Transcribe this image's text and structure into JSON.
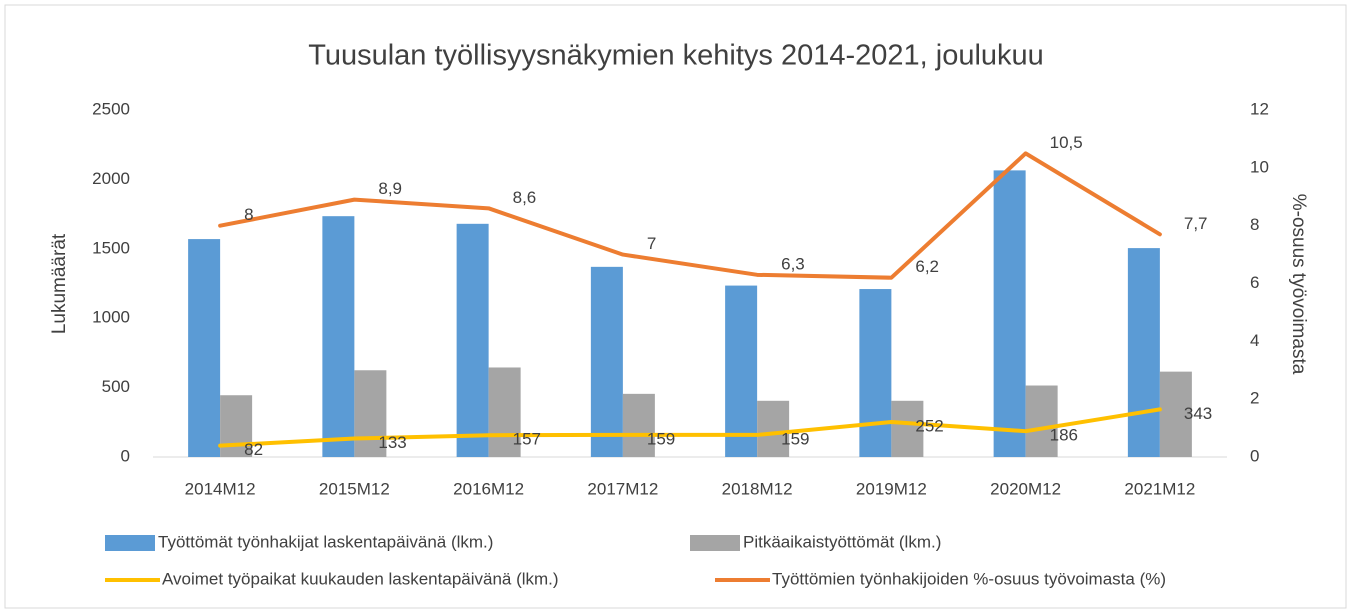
{
  "chart_data": {
    "type": "bar",
    "title": "Tuusulan työllisyysnäkymien kehitys 2014-2021, joulukuu",
    "y_label": "Lukumäärät",
    "y2_label": "%-osuus työvoimasta",
    "categories": [
      "2014M12",
      "2015M12",
      "2016M12",
      "2017M12",
      "2018M12",
      "2019M12",
      "2020M12",
      "2021M12"
    ],
    "series": [
      {
        "name": "Työttömät työnhakijat laskentapäivänä (lkm.)",
        "type": "bar",
        "color": "#5b9bd5",
        "values": [
          1570,
          1735,
          1680,
          1370,
          1235,
          1210,
          2065,
          1505
        ]
      },
      {
        "name": "Pitkäaikaistyöttömät (lkm.)",
        "type": "bar",
        "color": "#a5a5a5",
        "values": [
          445,
          625,
          645,
          455,
          405,
          405,
          515,
          615
        ]
      },
      {
        "name": "Avoimet työpaikat kuukauden laskentapäivänä (lkm.)",
        "type": "line",
        "color": "#ffc000",
        "values": [
          82,
          133,
          157,
          159,
          159,
          252,
          186,
          343
        ]
      },
      {
        "name": "Työttömien työnhakijoiden %-osuus työvoimasta (%)",
        "type": "line",
        "axis": "y2",
        "color": "#ed7d31",
        "values": [
          8,
          8.9,
          8.6,
          7,
          6.3,
          6.2,
          10.5,
          7.7
        ],
        "value_labels": [
          "8",
          "8,9",
          "8,6",
          "7",
          "6,3",
          "6,2",
          "10,5",
          "7,7"
        ]
      }
    ],
    "ylim": [
      0,
      2500
    ],
    "yticks": [
      0,
      500,
      1000,
      1500,
      2000,
      2500
    ],
    "y2lim": [
      0,
      12
    ],
    "y2ticks": [
      0,
      2,
      4,
      6,
      8,
      10,
      12
    ],
    "grid": false
  }
}
